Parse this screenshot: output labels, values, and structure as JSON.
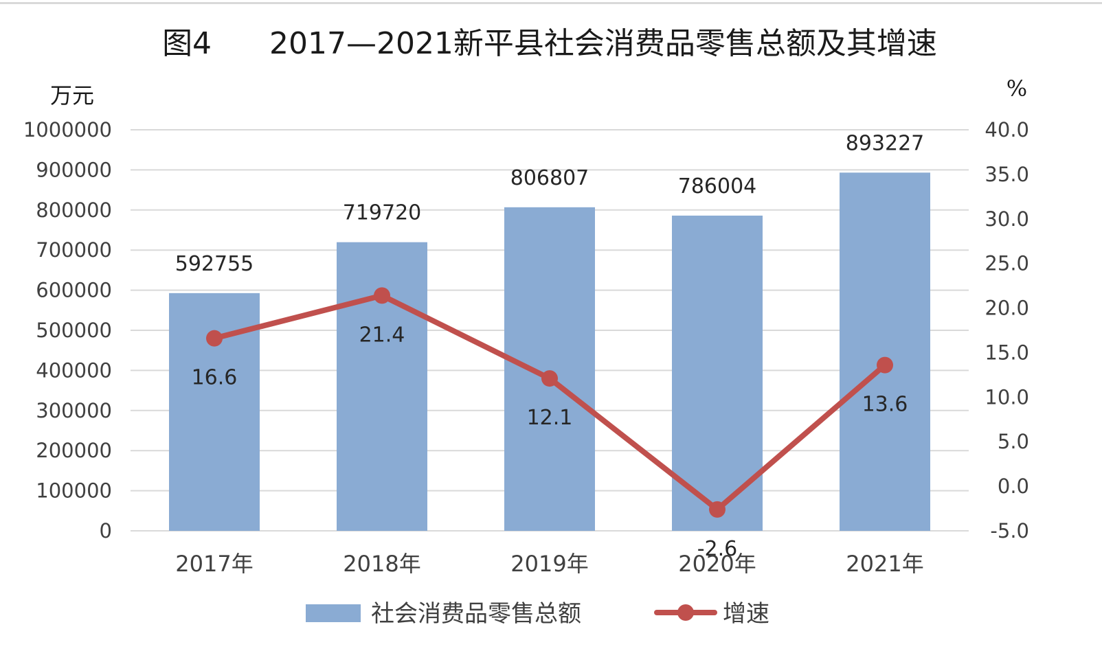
{
  "chart_data": {
    "type": "bar",
    "title": "图4      2017—2021新平县社会消费品零售总额及其增速",
    "categories": [
      "2017年",
      "2018年",
      "2019年",
      "2020年",
      "2021年"
    ],
    "y_left": {
      "unit": "万元",
      "range": [
        0,
        1000000
      ],
      "ticks": [
        "1000000",
        "900000",
        "800000",
        "700000",
        "600000",
        "500000",
        "400000",
        "300000",
        "200000",
        "100000",
        "0"
      ]
    },
    "y_right": {
      "unit": "%",
      "range": [
        -5.0,
        40.0
      ],
      "ticks": [
        "40.0",
        "35.0",
        "30.0",
        "25.0",
        "20.0",
        "15.0",
        "10.0",
        "5.0",
        "0.0",
        "-5.0"
      ]
    },
    "series": [
      {
        "name": "社会消费品零售总额",
        "type": "bar",
        "axis": "left",
        "color": "#8aabd3",
        "values": [
          592755,
          719720,
          806807,
          786004,
          893227
        ],
        "labels": [
          "592755",
          "719720",
          "806807",
          "786004",
          "893227"
        ]
      },
      {
        "name": "增速",
        "type": "line",
        "axis": "right",
        "color": "#c0504d",
        "values": [
          16.6,
          21.4,
          12.1,
          -2.6,
          13.6
        ],
        "labels": [
          "16.6",
          "21.4",
          "12.1",
          "-2.6",
          "13.6"
        ]
      }
    ],
    "grid": true,
    "legend_position": "bottom"
  }
}
